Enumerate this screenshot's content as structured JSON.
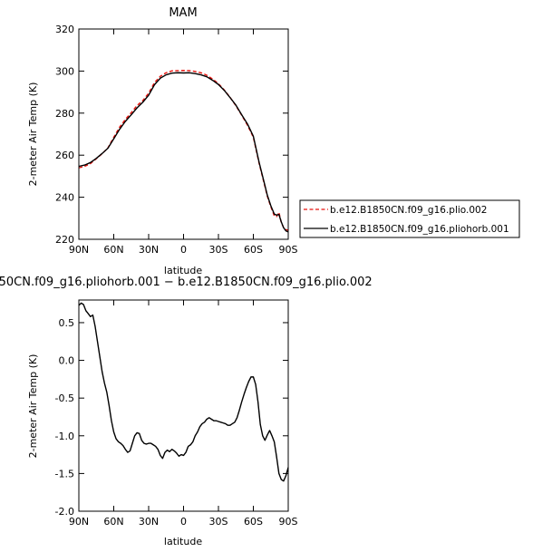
{
  "chart_data": [
    {
      "type": "line",
      "title": "MAM",
      "xlabel": "latitude",
      "ylabel": "2-meter Air Temp (K)",
      "xlim": [
        90,
        -90
      ],
      "ylim": [
        220,
        320
      ],
      "xticks": [
        90,
        60,
        30,
        0,
        -30,
        -60,
        -90
      ],
      "xtick_labels": [
        "90N",
        "60N",
        "30N",
        "0",
        "30S",
        "60S",
        "90S"
      ],
      "yticks": [
        220,
        240,
        260,
        280,
        300,
        320
      ],
      "ytick_labels": [
        "220",
        "240",
        "260",
        "280",
        "300",
        "320"
      ],
      "grid": false,
      "legend_position": "right",
      "series": [
        {
          "name": "b.e12.B1850CN.f09_g16.plio.002",
          "color": "#e8120c",
          "dash": "dashed",
          "x": [
            90,
            85,
            80,
            75,
            70,
            65,
            60,
            55,
            50,
            45,
            40,
            35,
            30,
            25,
            20,
            15,
            10,
            5,
            0,
            -5,
            -10,
            -15,
            -20,
            -25,
            -30,
            -35,
            -40,
            -45,
            -50,
            -55,
            -60,
            -65,
            -70,
            -72,
            -75,
            -78,
            -80,
            -82,
            -84,
            -86,
            -88,
            -90
          ],
          "y": [
            254,
            254.7,
            256,
            258.3,
            260.7,
            263.5,
            268.5,
            273.3,
            277,
            280.2,
            283.6,
            286,
            289.5,
            294.5,
            297.5,
            299.2,
            300.1,
            300.2,
            300.3,
            300.2,
            299.8,
            299.2,
            298,
            296.2,
            294,
            291,
            287.5,
            283.5,
            279,
            274.2,
            268.5,
            256,
            245,
            240.5,
            235.5,
            231.2,
            230.8,
            232.8,
            228,
            225.6,
            224.6,
            224.3
          ]
        },
        {
          "name": "b.e12.B1850CN.f09_g16.pliohorb.001",
          "color": "#000000",
          "dash": "solid",
          "x": [
            90,
            85,
            80,
            75,
            70,
            65,
            60,
            55,
            50,
            45,
            40,
            35,
            30,
            25,
            20,
            15,
            10,
            5,
            0,
            -5,
            -10,
            -15,
            -20,
            -25,
            -30,
            -35,
            -40,
            -45,
            -50,
            -55,
            -60,
            -65,
            -70,
            -72,
            -75,
            -78,
            -80,
            -82,
            -84,
            -86,
            -88,
            -90
          ],
          "y": [
            254.7,
            255.3,
            256.5,
            258.5,
            260.8,
            263.3,
            267.8,
            272.3,
            276.1,
            279.2,
            282.5,
            285.2,
            288.5,
            293.5,
            296.6,
            298.2,
            299,
            299.2,
            299.1,
            299.2,
            298.8,
            298.2,
            297.3,
            295.6,
            293.6,
            290.8,
            287.4,
            283.8,
            279.2,
            274.8,
            269,
            256.5,
            245.5,
            241,
            236,
            232,
            231.5,
            231.8,
            228.3,
            225.5,
            224,
            223.5
          ]
        }
      ]
    },
    {
      "type": "line",
      "title": "ı50CN.f09_g16.pliohorb.001 − b.e12.B1850CN.f09_g16.plio.002",
      "xlabel": "latitude",
      "ylabel": "2-meter Air Temp (K)",
      "xlim": [
        90,
        -90
      ],
      "ylim": [
        -2.0,
        0.8
      ],
      "xticks": [
        90,
        60,
        30,
        0,
        -30,
        -60,
        -90
      ],
      "xtick_labels": [
        "90N",
        "60N",
        "30N",
        "0",
        "30S",
        "60S",
        "90S"
      ],
      "yticks": [
        -2.0,
        -1.5,
        -1.0,
        -0.5,
        0.0,
        0.5
      ],
      "ytick_labels": [
        "-2.0",
        "-1.5",
        "-1.0",
        "-0.5",
        "0.0",
        "0.5"
      ],
      "grid": false,
      "series": [
        {
          "color": "#000000",
          "x": [
            90,
            88,
            86,
            84,
            82,
            80,
            78,
            76,
            74,
            72,
            70,
            68,
            66,
            64,
            62,
            60,
            58,
            56,
            54,
            52,
            50,
            48,
            46,
            44,
            42,
            40,
            38,
            36,
            34,
            32,
            30,
            28,
            26,
            24,
            22,
            20,
            18,
            16,
            14,
            12,
            10,
            8,
            6,
            4,
            2,
            0,
            -2,
            -4,
            -6,
            -8,
            -10,
            -12,
            -14,
            -16,
            -18,
            -20,
            -22,
            -24,
            -26,
            -28,
            -30,
            -32,
            -34,
            -36,
            -38,
            -40,
            -42,
            -44,
            -46,
            -48,
            -50,
            -52,
            -54,
            -56,
            -58,
            -60,
            -62,
            -64,
            -66,
            -68,
            -70,
            -72,
            -74,
            -76,
            -78,
            -80,
            -82,
            -84,
            -86,
            -88,
            -90
          ],
          "y": [
            0.73,
            0.76,
            0.74,
            0.66,
            0.62,
            0.58,
            0.6,
            0.45,
            0.25,
            0.05,
            -0.15,
            -0.3,
            -0.42,
            -0.6,
            -0.8,
            -0.95,
            -1.04,
            -1.08,
            -1.1,
            -1.13,
            -1.18,
            -1.22,
            -1.2,
            -1.1,
            -1.0,
            -0.96,
            -0.97,
            -1.06,
            -1.1,
            -1.11,
            -1.1,
            -1.1,
            -1.12,
            -1.14,
            -1.18,
            -1.26,
            -1.3,
            -1.22,
            -1.19,
            -1.21,
            -1.18,
            -1.2,
            -1.23,
            -1.27,
            -1.25,
            -1.26,
            -1.22,
            -1.14,
            -1.12,
            -1.08,
            -1.0,
            -0.95,
            -0.88,
            -0.84,
            -0.82,
            -0.78,
            -0.76,
            -0.78,
            -0.8,
            -0.8,
            -0.81,
            -0.82,
            -0.83,
            -0.84,
            -0.86,
            -0.86,
            -0.84,
            -0.82,
            -0.76,
            -0.66,
            -0.55,
            -0.45,
            -0.36,
            -0.28,
            -0.22,
            -0.22,
            -0.32,
            -0.55,
            -0.85,
            -1.0,
            -1.06,
            -0.99,
            -0.93,
            -1.0,
            -1.08,
            -1.28,
            -1.5,
            -1.58,
            -1.6,
            -1.53,
            -1.42
          ]
        }
      ]
    }
  ]
}
